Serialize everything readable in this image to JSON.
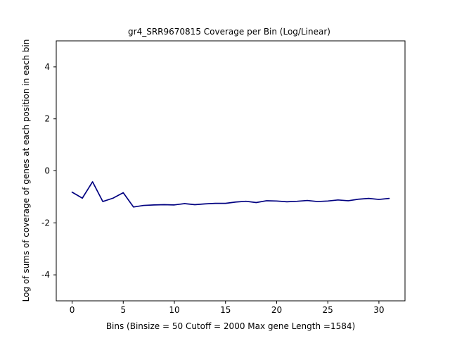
{
  "chart_data": {
    "type": "line",
    "title": "gr4_SRR9670815 Coverage per Bin (Log/Linear)",
    "xlabel": "Bins  (Binsize = 50 Cutoff = 2000 Max gene Length =1584)",
    "ylabel": "Log of sums of coverage of genes at each position in each bin",
    "xlim": [
      -1.55,
      32.55
    ],
    "ylim": [
      -5,
      5
    ],
    "x_ticks": [
      0,
      5,
      10,
      15,
      20,
      25,
      30
    ],
    "y_ticks": [
      -4,
      -2,
      0,
      2,
      4
    ],
    "grid": false,
    "line_color": "#000080",
    "series": [
      {
        "x": [
          0,
          1,
          2,
          3,
          4,
          5,
          6,
          7,
          8,
          9,
          10,
          11,
          12,
          13,
          14,
          15,
          16,
          17,
          18,
          19,
          20,
          21,
          22,
          23,
          24,
          25,
          26,
          27,
          28,
          29,
          30,
          31
        ],
        "values": [
          -0.82,
          -1.05,
          -0.42,
          -1.18,
          -1.05,
          -0.84,
          -1.39,
          -1.33,
          -1.31,
          -1.3,
          -1.31,
          -1.26,
          -1.3,
          -1.27,
          -1.25,
          -1.25,
          -1.2,
          -1.17,
          -1.22,
          -1.15,
          -1.16,
          -1.19,
          -1.17,
          -1.14,
          -1.18,
          -1.16,
          -1.12,
          -1.15,
          -1.09,
          -1.06,
          -1.1,
          -1.06
        ]
      }
    ]
  }
}
